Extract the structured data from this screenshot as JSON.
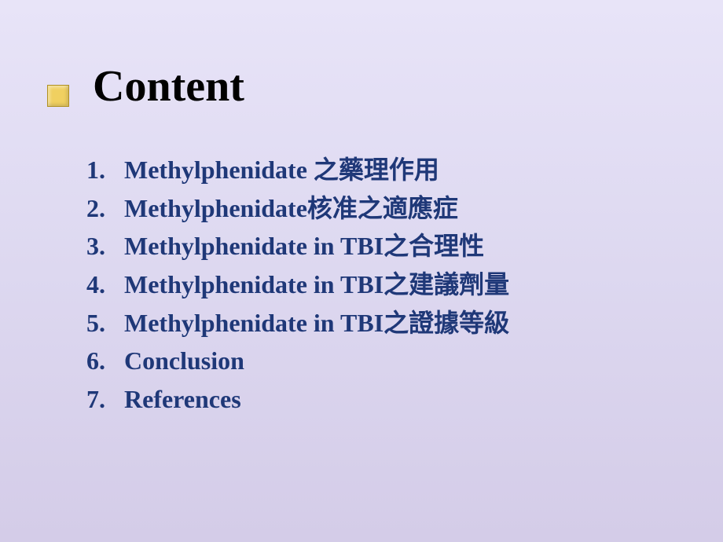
{
  "slide": {
    "background_gradient_top": "#e8e4f8",
    "background_gradient_mid": "#ddd8f0",
    "background_gradient_bottom": "#d4cce8",
    "title": "Content",
    "title_color": "#000000",
    "title_fontsize": 56,
    "bullet_color": "#f0d060",
    "bullet_border": "#b09020",
    "list_color": "#1f3878",
    "list_fontsize": 32,
    "items": [
      "Methylphenidate 之藥理作用",
      "Methylphenidate核准之適應症",
      "Methylphenidate in TBI之合理性",
      "Methylphenidate in TBI之建議劑量",
      "Methylphenidate in TBI之證據等級",
      "Conclusion",
      "References"
    ]
  }
}
